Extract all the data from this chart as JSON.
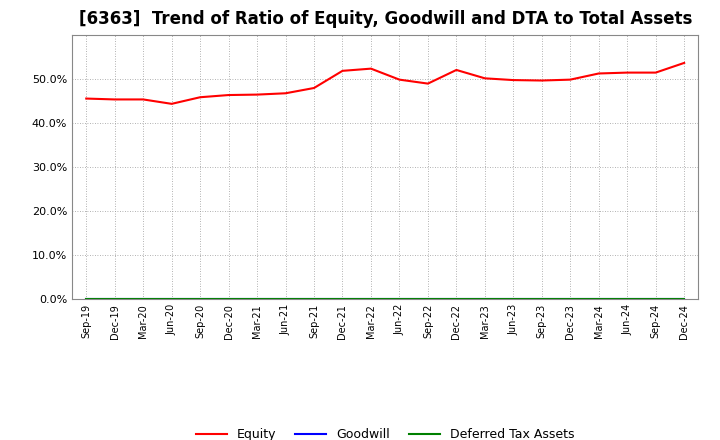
{
  "title": "[6363]  Trend of Ratio of Equity, Goodwill and DTA to Total Assets",
  "x_labels": [
    "Sep-19",
    "Dec-19",
    "Mar-20",
    "Jun-20",
    "Sep-20",
    "Dec-20",
    "Mar-21",
    "Jun-21",
    "Sep-21",
    "Dec-21",
    "Mar-22",
    "Jun-22",
    "Sep-22",
    "Dec-22",
    "Mar-23",
    "Jun-23",
    "Sep-23",
    "Dec-23",
    "Mar-24",
    "Jun-24",
    "Sep-24",
    "Dec-24"
  ],
  "equity": [
    0.456,
    0.454,
    0.454,
    0.444,
    0.459,
    0.464,
    0.465,
    0.468,
    0.48,
    0.519,
    0.524,
    0.499,
    0.49,
    0.521,
    0.502,
    0.498,
    0.497,
    0.499,
    0.513,
    0.515,
    0.515,
    0.537
  ],
  "goodwill": [
    0.0,
    0.0,
    0.0,
    0.0,
    0.0,
    0.0,
    0.0,
    0.0,
    0.0,
    0.0,
    0.0,
    0.0,
    0.0,
    0.0,
    0.0,
    0.0,
    0.0,
    0.0,
    0.0,
    0.0,
    0.0,
    0.0
  ],
  "dta": [
    0.0,
    0.0,
    0.0,
    0.0,
    0.0,
    0.0,
    0.0,
    0.0,
    0.0,
    0.0,
    0.0,
    0.0,
    0.0,
    0.0,
    0.0,
    0.0,
    0.0,
    0.0,
    0.0,
    0.0,
    0.0,
    0.0
  ],
  "equity_color": "#FF0000",
  "goodwill_color": "#0000FF",
  "dta_color": "#008000",
  "ylim": [
    0.0,
    0.6
  ],
  "yticks": [
    0.0,
    0.1,
    0.2,
    0.3,
    0.4,
    0.5
  ],
  "background_color": "#FFFFFF",
  "grid_color": "#999999",
  "title_fontsize": 12,
  "legend_labels": [
    "Equity",
    "Goodwill",
    "Deferred Tax Assets"
  ]
}
